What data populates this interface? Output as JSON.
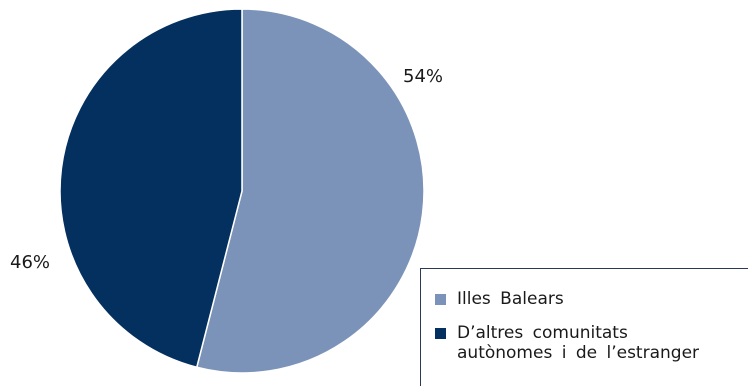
{
  "chart_data": {
    "type": "pie",
    "series": [
      {
        "name": "Illes Balears",
        "value": 54,
        "label": "54%",
        "color": "#7b93b8"
      },
      {
        "name": "D’altres comunitats\nautònomes i de l’estranger",
        "value": 46,
        "label": "46%",
        "color": "#04305f"
      }
    ],
    "start_angle": "12 o'clock",
    "direction": "clockwise",
    "legend_position": "bottom-right"
  }
}
